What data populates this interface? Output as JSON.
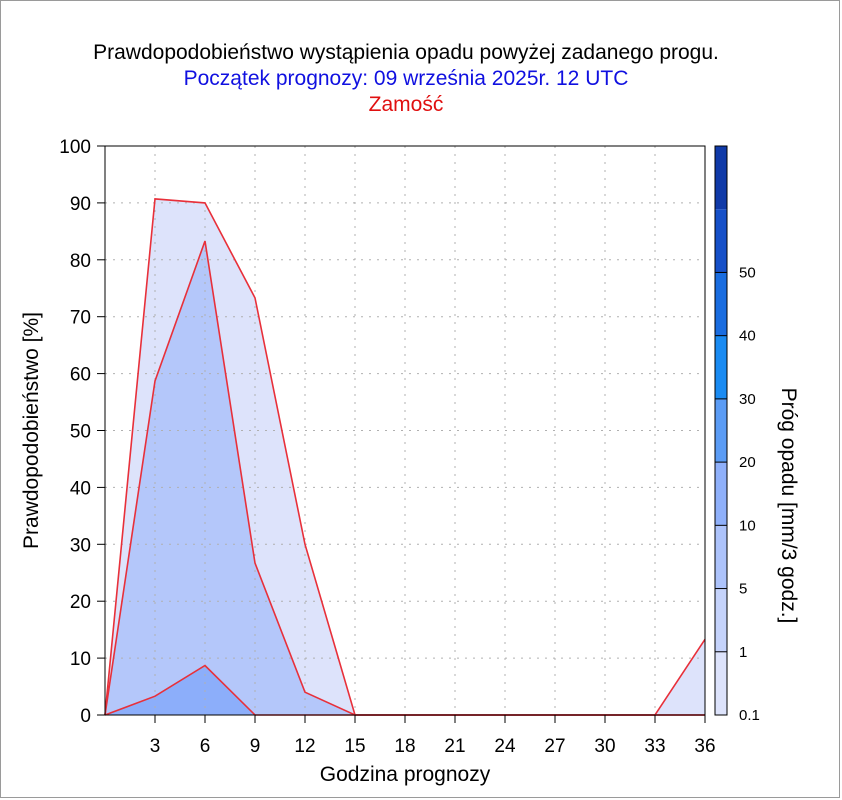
{
  "title": "Prawdopodobieństwo wystąpienia opadu powyżej zadanego progu.",
  "subtitle": "Początek prognozy: 09 września 2025r. 12 UTC",
  "location": "Zamość",
  "colors": {
    "title": "#000000",
    "subtitle": "#1010e0",
    "location": "#e01010",
    "outline": "#e8303a",
    "grid": "#b0b0b0"
  },
  "chart_data": {
    "type": "area",
    "xlabel": "Godzina prognozy",
    "ylabel": "Prawdopodobieństwo [%]",
    "xlim": [
      0,
      36
    ],
    "ylim": [
      0,
      100
    ],
    "xticks": [
      3,
      6,
      9,
      12,
      15,
      18,
      21,
      24,
      27,
      30,
      33,
      36
    ],
    "yticks": [
      0,
      10,
      20,
      30,
      40,
      50,
      60,
      70,
      80,
      90,
      100
    ],
    "grid": true,
    "series": [
      {
        "threshold": "0.1",
        "color": "#dde3fb",
        "points": [
          [
            0,
            0
          ],
          [
            3,
            90.7
          ],
          [
            6,
            90.0
          ],
          [
            9,
            73.3
          ],
          [
            12,
            30.0
          ],
          [
            15,
            0
          ],
          [
            18,
            0
          ],
          [
            21,
            0
          ],
          [
            24,
            0
          ],
          [
            27,
            0
          ],
          [
            30,
            0
          ],
          [
            33,
            0
          ],
          [
            36,
            13.3
          ]
        ]
      },
      {
        "threshold": "1",
        "color": "#b4c7fa",
        "points": [
          [
            0,
            0
          ],
          [
            3,
            58.7
          ],
          [
            6,
            83.3
          ],
          [
            9,
            26.7
          ],
          [
            12,
            4.0
          ],
          [
            15,
            0
          ],
          [
            18,
            0
          ],
          [
            21,
            0
          ],
          [
            24,
            0
          ],
          [
            27,
            0
          ],
          [
            30,
            0
          ],
          [
            33,
            0
          ],
          [
            36,
            0
          ]
        ]
      },
      {
        "threshold": "5",
        "color": "#8caefa",
        "points": [
          [
            0,
            0
          ],
          [
            3,
            3.3
          ],
          [
            6,
            8.7
          ],
          [
            9,
            0
          ],
          [
            12,
            0
          ],
          [
            15,
            0
          ],
          [
            18,
            0
          ],
          [
            21,
            0
          ],
          [
            24,
            0
          ],
          [
            27,
            0
          ],
          [
            30,
            0
          ],
          [
            33,
            0
          ],
          [
            36,
            0
          ]
        ]
      }
    ],
    "colorbar": {
      "label": "Próg opadu [mm/3 godz.]",
      "bands": [
        {
          "from": "0.1",
          "to": "1",
          "color": "#dde3fb"
        },
        {
          "from": "1",
          "to": "5",
          "color": "#c5d3fb"
        },
        {
          "from": "5",
          "to": "10",
          "color": "#adc3fb"
        },
        {
          "from": "10",
          "to": "20",
          "color": "#8fb0fa"
        },
        {
          "from": "20",
          "to": "30",
          "color": "#5b9cf5"
        },
        {
          "from": "30",
          "to": "40",
          "color": "#1a8bf2"
        },
        {
          "from": "40",
          "to": "50",
          "color": "#1a6de0"
        },
        {
          "from": "50",
          "to": "",
          "color": "#1650c8"
        },
        {
          "from": "",
          "to": "",
          "color": "#103aa8"
        }
      ],
      "ticks": [
        "0.1",
        "1",
        "5",
        "10",
        "20",
        "30",
        "40",
        "50"
      ]
    }
  }
}
